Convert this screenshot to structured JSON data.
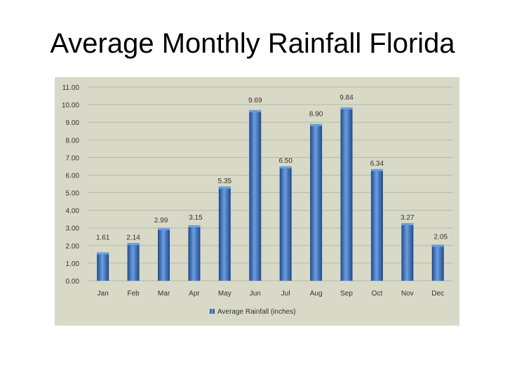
{
  "slide": {
    "title": "Average Monthly Rainfall Florida"
  },
  "chart_data": {
    "type": "bar",
    "title": "Average Monthly Rainfall Florida",
    "categories": [
      "Jan",
      "Feb",
      "Mar",
      "Apr",
      "May",
      "Jun",
      "Jul",
      "Aug",
      "Sep",
      "Oct",
      "Nov",
      "Dec"
    ],
    "series": [
      {
        "name": "Average Rainfall (inches)",
        "values": [
          1.61,
          2.14,
          2.99,
          3.15,
          5.35,
          9.69,
          6.5,
          8.9,
          9.84,
          6.34,
          3.27,
          2.05
        ],
        "labels": [
          "1.61",
          "2.14",
          "2.99",
          "3.15",
          "5.35",
          "9.69",
          "6.50",
          "8.90",
          "9.84",
          "6.34",
          "3.27",
          "2.05"
        ]
      }
    ],
    "ylim": [
      0,
      11
    ],
    "yticks": [
      "0.00",
      "1.00",
      "2.00",
      "3.00",
      "4.00",
      "5.00",
      "6.00",
      "7.00",
      "8.00",
      "9.00",
      "10.00",
      "11.00"
    ],
    "xlabel": "",
    "ylabel": "",
    "grid": true,
    "legend": "bottom-center",
    "colors": {
      "bar": "#3a6fc0",
      "bar_dark": "#1f4a8a",
      "bar_light": "#6a9ee0",
      "grid": "#b8b8a8",
      "background": "#d9d9c7"
    }
  }
}
